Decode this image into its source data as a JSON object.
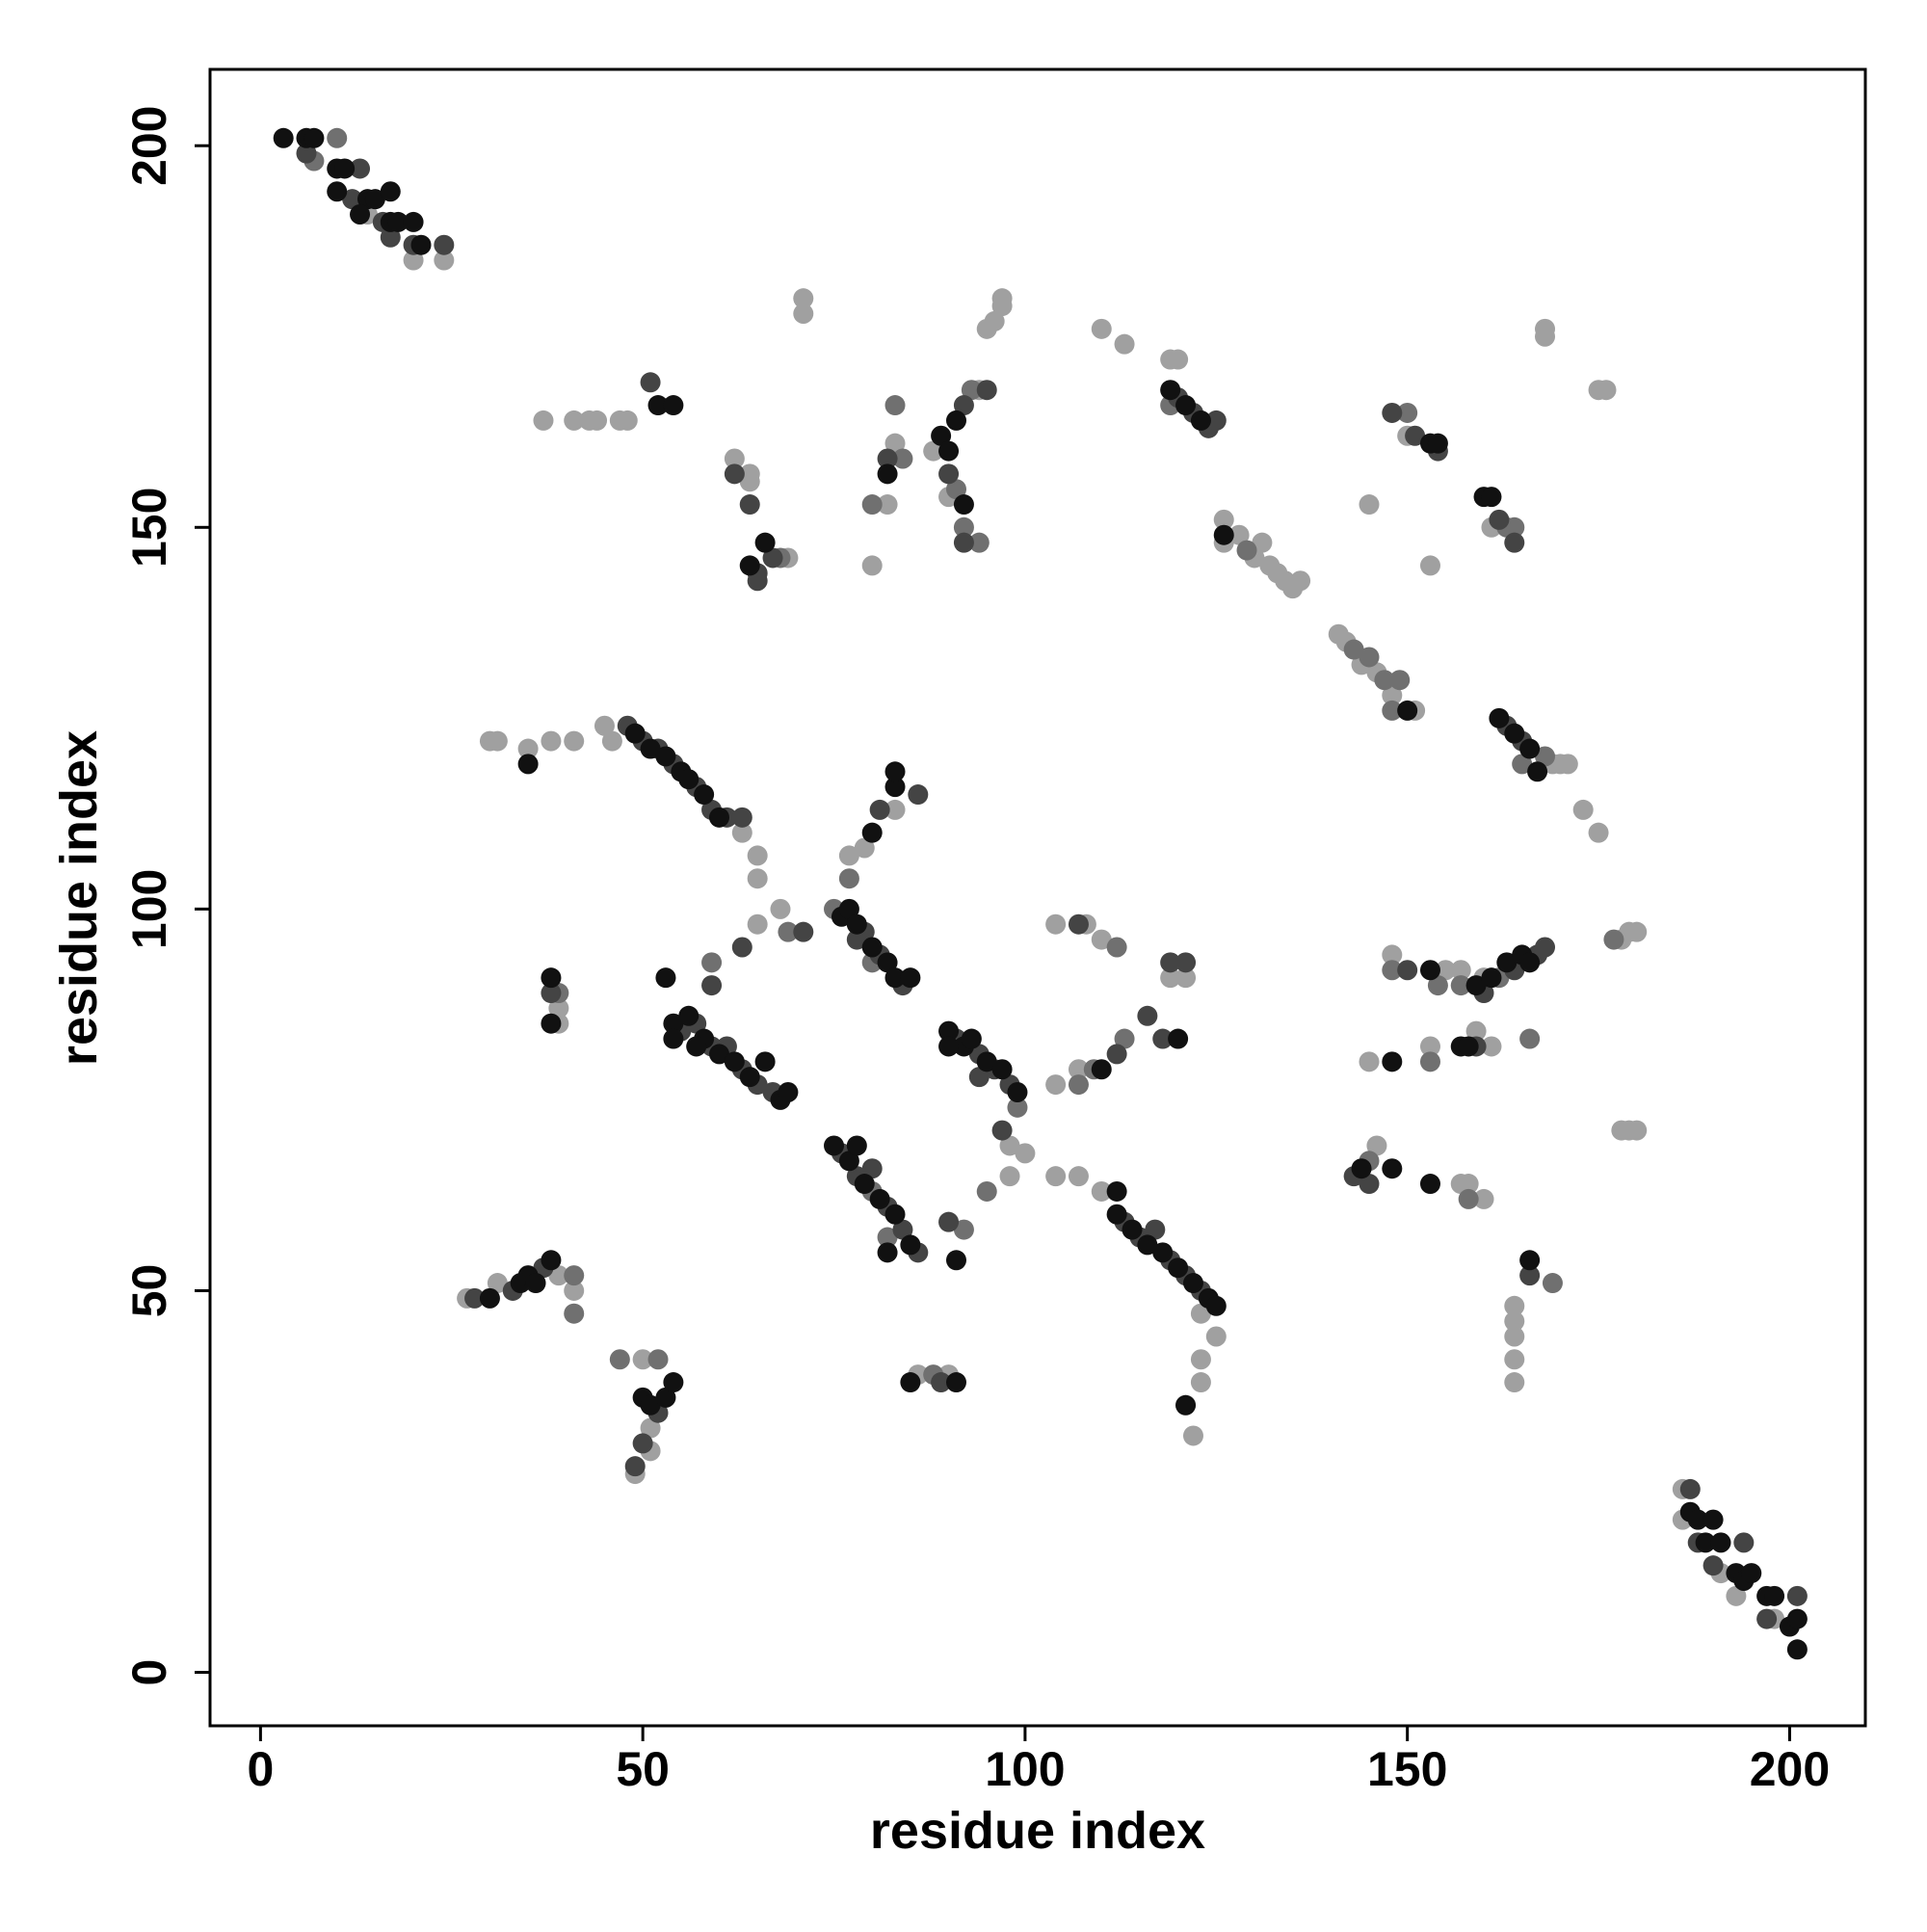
{
  "chart_data": {
    "type": "scatter",
    "xlabel": "residue index",
    "ylabel": "residue index",
    "xlim": [
      -6.6,
      209.9
    ],
    "ylim": [
      -7,
      210
    ],
    "xticks": [
      0,
      50,
      100,
      150,
      200
    ],
    "yticks": [
      0,
      50,
      100,
      150,
      200
    ],
    "series": [
      {
        "color": "#a0a0a0",
        "x": [
          14,
          20,
          24,
          186,
          191,
          193,
          198,
          186,
          46,
          45,
          30,
          31,
          35,
          38,
          41,
          63,
          65,
          65,
          65,
          68,
          77,
          79,
          83,
          98,
          100,
          98,
          104,
          107,
          110,
          104,
          107,
          104,
          108,
          110,
          119,
          121,
          123,
          125,
          123,
          123,
          121,
          122,
          27,
          31,
          39,
          41,
          50,
          51,
          51,
          49,
          86,
          90,
          39,
          39,
          37,
          41,
          43,
          44,
          47,
          48,
          62,
          64,
          64,
          69,
          71,
          71,
          82,
          80,
          83,
          88,
          90,
          94,
          95,
          96,
          97,
          97,
          110,
          113,
          119,
          120,
          126,
          126,
          128,
          130,
          131,
          132,
          133,
          134,
          135,
          136,
          141,
          142,
          144,
          146,
          148,
          151,
          145,
          150,
          153,
          161,
          168,
          168,
          175,
          176,
          169,
          170,
          171,
          173,
          175,
          148,
          155,
          157,
          160,
          159,
          161,
          153,
          145,
          178,
          179,
          180,
          178,
          179,
          180,
          146,
          157,
          158,
          160,
          164,
          164,
          164,
          164,
          164
        ],
        "y": [
          191,
          185,
          185,
          24,
          13,
          10,
          7,
          20,
          122,
          124,
          122,
          122,
          121,
          122,
          122,
          110,
          107,
          104,
          98,
          100,
          107,
          108,
          113,
          69,
          68,
          65,
          65,
          65,
          63,
          77,
          79,
          98,
          98,
          96,
          91,
          91,
          47,
          44,
          41,
          38,
          35,
          31,
          49,
          51,
          52,
          50,
          41,
          32,
          29,
          26,
          39,
          39,
          87,
          85,
          164,
          164,
          164,
          164,
          164,
          164,
          159,
          157,
          156,
          146,
          180,
          178,
          153,
          145,
          161,
          160,
          154,
          168,
          176,
          177,
          179,
          180,
          176,
          174,
          172,
          172,
          151,
          148,
          149,
          146,
          148,
          145,
          144,
          143,
          142,
          143,
          136,
          135,
          132,
          131,
          128,
          126,
          153,
          162,
          145,
          150,
          176,
          175,
          168,
          168,
          119,
          119,
          119,
          113,
          110,
          94,
          92,
          92,
          91,
          84,
          82,
          82,
          80,
          96,
          97,
          97,
          71,
          71,
          71,
          69,
          64,
          64,
          62,
          48,
          46,
          44,
          41,
          38
        ]
      },
      {
        "color": "#707070",
        "x": [
          10,
          7,
          69,
          59,
          75,
          80,
          77,
          99,
          95,
          107,
          109,
          113,
          112,
          80,
          82,
          92,
          41,
          41,
          47,
          52,
          88,
          39,
          68,
          80,
          84,
          83,
          93,
          92,
          94,
          91,
          119,
          129,
          143,
          145,
          147,
          149,
          148,
          150,
          163,
          164,
          168,
          165,
          148,
          154,
          157,
          162,
          153,
          166,
          177,
          145,
          158,
          169
        ],
        "y": [
          201,
          198,
          97,
          93,
          100,
          93,
          104,
          74,
          63,
          77,
          79,
          83,
          95,
          63,
          57,
          58,
          52,
          47,
          41,
          41,
          39,
          89,
          146,
          153,
          159,
          166,
          168,
          150,
          148,
          155,
          166,
          147,
          134,
          133,
          130,
          130,
          126,
          165,
          150,
          150,
          120,
          119,
          92,
          90,
          90,
          91,
          80,
          83,
          96,
          67,
          62,
          51
        ]
      },
      {
        "color": "#444444",
        "x": [
          6,
          13,
          12,
          16,
          17,
          20,
          24,
          187,
          190,
          194,
          197,
          201,
          188,
          48,
          50,
          52,
          54,
          57,
          59,
          61,
          63,
          63,
          71,
          55,
          57,
          59,
          61,
          63,
          65,
          67,
          59,
          79,
          81,
          84,
          78,
          81,
          86,
          91,
          94,
          96,
          98,
          94,
          97,
          112,
          116,
          118,
          107,
          119,
          121,
          76,
          78,
          80,
          82,
          84,
          86,
          90,
          113,
          115,
          117,
          119,
          121,
          123,
          28,
          33,
          37,
          52,
          50,
          49,
          89,
          38,
          51,
          62,
          64,
          65,
          67,
          65,
          82,
          92,
          95,
          90,
          92,
          120,
          122,
          124,
          125,
          148,
          151,
          154,
          162,
          164,
          163,
          165,
          150,
          160,
          164,
          167,
          168,
          159,
          143,
          145,
          166
        ],
        "y": [
          199,
          197,
          193,
          190,
          188,
          187,
          187,
          24,
          14,
          17,
          7,
          10,
          17,
          124,
          122,
          121,
          119,
          116,
          113,
          112,
          112,
          95,
          97,
          84,
          85,
          82,
          82,
          79,
          77,
          76,
          90,
          97,
          94,
          90,
          96,
          113,
          115,
          83,
          81,
          79,
          77,
          78,
          71,
          81,
          86,
          83,
          98,
          93,
          93,
          68,
          65,
          66,
          61,
          58,
          55,
          59,
          59,
          57,
          58,
          54,
          52,
          50,
          49,
          50,
          53,
          34,
          30,
          27,
          38,
          89,
          169,
          157,
          153,
          143,
          146,
          144,
          159,
          166,
          168,
          157,
          148,
          167,
          165,
          163,
          164,
          165,
          162,
          160,
          151,
          148,
          124,
          122,
          92,
          89,
          92,
          94,
          95,
          82,
          65,
          64,
          52
        ]
      },
      {
        "color": "#111111",
        "x": [
          3,
          6,
          7,
          10,
          11,
          10,
          14,
          15,
          17,
          13,
          17,
          18,
          20,
          21,
          187,
          188,
          189,
          191,
          190,
          193,
          194,
          195,
          197,
          198,
          200,
          201,
          201,
          49,
          51,
          53,
          55,
          56,
          58,
          60,
          35,
          54,
          56,
          58,
          60,
          62,
          64,
          66,
          68,
          69,
          54,
          57,
          53,
          76,
          77,
          78,
          80,
          82,
          83,
          85,
          80,
          83,
          83,
          90,
          92,
          93,
          95,
          97,
          99,
          90,
          112,
          110,
          120,
          75,
          77,
          79,
          81,
          83,
          85,
          82,
          78,
          91,
          112,
          114,
          116,
          118,
          120,
          122,
          124,
          125,
          121,
          30,
          34,
          35,
          36,
          38,
          50,
          51,
          53,
          54,
          85,
          91,
          38,
          38,
          52,
          54,
          64,
          66,
          82,
          89,
          90,
          91,
          92,
          119,
          121,
          123,
          126,
          150,
          153,
          154,
          160,
          161,
          162,
          164,
          166,
          167,
          153,
          159,
          161,
          163,
          165,
          166,
          157,
          148,
          158,
          144,
          148,
          153,
          166
        ],
        "y": [
          201,
          201,
          201,
          197,
          197,
          194,
          193,
          193,
          194,
          191,
          190,
          190,
          190,
          187,
          21,
          20,
          17,
          17,
          20,
          13,
          12,
          13,
          10,
          10,
          6,
          7,
          3,
          123,
          121,
          120,
          118,
          117,
          115,
          112,
          119,
          85,
          86,
          83,
          81,
          80,
          78,
          80,
          75,
          76,
          83,
          82,
          91,
          99,
          100,
          98,
          95,
          93,
          91,
          91,
          110,
          116,
          118,
          84,
          82,
          83,
          80,
          79,
          76,
          82,
          63,
          79,
          83,
          69,
          67,
          64,
          62,
          60,
          56,
          55,
          69,
          54,
          60,
          58,
          56,
          55,
          53,
          51,
          49,
          48,
          35,
          49,
          51,
          52,
          51,
          54,
          36,
          35,
          36,
          38,
          38,
          38,
          91,
          85,
          166,
          166,
          145,
          148,
          157,
          162,
          160,
          164,
          153,
          168,
          166,
          164,
          149,
          126,
          161,
          161,
          154,
          154,
          125,
          123,
          121,
          118,
          92,
          90,
          91,
          93,
          94,
          93,
          82,
          80,
          82,
          66,
          66,
          64,
          54
        ]
      }
    ]
  }
}
